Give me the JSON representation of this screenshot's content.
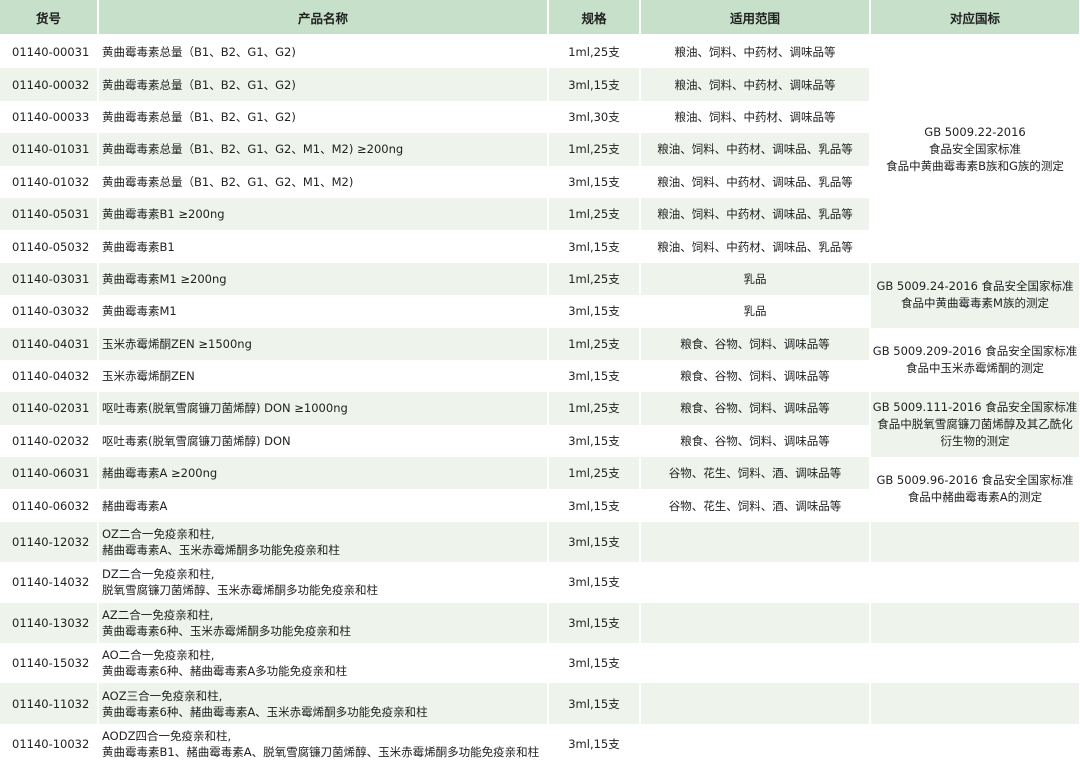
{
  "colors": {
    "header": "#c6e0c9",
    "stripe": "#eef3ec"
  },
  "headers": [
    "货号",
    "产品名称",
    "规格",
    "适用范围",
    "对应国标"
  ],
  "rows": [
    {
      "code": "01140-00031",
      "name": [
        "黄曲霉毒素总量（B1、B2、G1、G2)"
      ],
      "spec": "1ml,25支",
      "scope": "粮油、饲料、中药材、调味品等"
    },
    {
      "code": "01140-00032",
      "name": [
        "黄曲霉毒素总量（B1、B2、G1、G2)"
      ],
      "spec": "3ml,15支",
      "scope": "粮油、饲料、中药材、调味品等"
    },
    {
      "code": "01140-00033",
      "name": [
        "黄曲霉毒素总量（B1、B2、G1、G2)"
      ],
      "spec": "3ml,30支",
      "scope": "粮油、饲料、中药材、调味品等"
    },
    {
      "code": "01140-01031",
      "name": [
        "黄曲霉毒素总量（B1、B2、G1、G2、M1、M2) ≥200ng"
      ],
      "spec": "1ml,25支",
      "scope": "粮油、饲料、中药材、调味品、乳品等"
    },
    {
      "code": "01140-01032",
      "name": [
        "黄曲霉毒素总量（B1、B2、G1、G2、M1、M2)"
      ],
      "spec": "3ml,15支",
      "scope": "粮油、饲料、中药材、调味品、乳品等"
    },
    {
      "code": "01140-05031",
      "name": [
        "黄曲霉毒素B1 ≥200ng"
      ],
      "spec": "1ml,25支",
      "scope": "粮油、饲料、中药材、调味品、乳品等"
    },
    {
      "code": "01140-05032",
      "name": [
        "黄曲霉毒素B1"
      ],
      "spec": "3ml,15支",
      "scope": "粮油、饲料、中药材、调味品、乳品等"
    },
    {
      "code": "01140-03031",
      "name": [
        "黄曲霉毒素M1 ≥200ng"
      ],
      "spec": "1ml,25支",
      "scope": "乳品"
    },
    {
      "code": "01140-03032",
      "name": [
        "黄曲霉毒素M1"
      ],
      "spec": "3ml,15支",
      "scope": "乳品"
    },
    {
      "code": "01140-04031",
      "name": [
        "玉米赤霉烯酮ZEN ≥1500ng"
      ],
      "spec": "1ml,25支",
      "scope": "粮食、谷物、饲料、调味品等"
    },
    {
      "code": "01140-04032",
      "name": [
        "玉米赤霉烯酮ZEN"
      ],
      "spec": "3ml,15支",
      "scope": "粮食、谷物、饲料、调味品等"
    },
    {
      "code": "01140-02031",
      "name": [
        "呕吐毒素(脱氧雪腐镰刀菌烯醇) DON ≥1000ng"
      ],
      "spec": "1ml,25支",
      "scope": "粮食、谷物、饲料、调味品等"
    },
    {
      "code": "01140-02032",
      "name": [
        "呕吐毒素(脱氧雪腐镰刀菌烯醇) DON"
      ],
      "spec": "3ml,15支",
      "scope": "粮食、谷物、饲料、调味品等"
    },
    {
      "code": "01140-06031",
      "name": [
        "赭曲霉毒素A ≥200ng"
      ],
      "spec": "1ml,25支",
      "scope": "谷物、花生、饲料、酒、调味品等"
    },
    {
      "code": "01140-06032",
      "name": [
        "赭曲霉毒素A"
      ],
      "spec": "3ml,15支",
      "scope": "谷物、花生、饲料、酒、调味品等"
    },
    {
      "code": "01140-12032",
      "name": [
        "OZ二合一免疫亲和柱,",
        "赭曲霉毒素A、玉米赤霉烯酮多功能免疫亲和柱"
      ],
      "spec": "3ml,15支",
      "scope": ""
    },
    {
      "code": "01140-14032",
      "name": [
        "DZ二合一免疫亲和柱,",
        "脱氧雪腐镰刀菌烯醇、玉米赤霉烯酮多功能免疫亲和柱"
      ],
      "spec": "3ml,15支",
      "scope": ""
    },
    {
      "code": "01140-13032",
      "name": [
        "AZ二合一免疫亲和柱,",
        "黄曲霉毒素6种、玉米赤霉烯酮多功能免疫亲和柱"
      ],
      "spec": "3ml,15支",
      "scope": ""
    },
    {
      "code": "01140-15032",
      "name": [
        "AO二合一免疫亲和柱,",
        "黄曲霉毒素6种、赭曲霉毒素A多功能免疫亲和柱"
      ],
      "spec": "3ml,15支",
      "scope": ""
    },
    {
      "code": "01140-11032",
      "name": [
        "AOZ三合一免疫亲和柱,",
        "黄曲霉毒素6种、赭曲霉毒素A、玉米赤霉烯酮多功能免疫亲和柱"
      ],
      "spec": "3ml,15支",
      "scope": ""
    },
    {
      "code": "01140-10032",
      "name": [
        "AODZ四合一免疫亲和柱,",
        "黄曲霉毒素B1、赭曲霉毒素A、脱氧雪腐镰刀菌烯醇、玉米赤霉烯酮多功能免疫亲和柱"
      ],
      "spec": "3ml,15支",
      "scope": ""
    }
  ],
  "standards": [
    {
      "start": 0,
      "span": 7,
      "lines": [
        "GB 5009.22-2016",
        "食品安全国家标准",
        "食品中黄曲霉毒素B族和G族的测定"
      ]
    },
    {
      "start": 7,
      "span": 2,
      "tint": true,
      "lines": [
        "GB 5009.24-2016 食品安全国家标准",
        "食品中黄曲霉毒素M族的测定"
      ]
    },
    {
      "start": 9,
      "span": 2,
      "lines": [
        "GB 5009.209-2016 食品安全国家标准",
        "食品中玉米赤霉烯酮的测定"
      ]
    },
    {
      "start": 11,
      "span": 2,
      "tint": true,
      "lines": [
        "GB 5009.111-2016 食品安全国家标准",
        "食品中脱氧雪腐镰刀菌烯醇及其乙酰化",
        "衍生物的测定"
      ]
    },
    {
      "start": 13,
      "span": 2,
      "lines": [
        "GB 5009.96-2016  食品安全国家标准",
        "食品中赭曲霉毒素A的测定"
      ]
    }
  ]
}
